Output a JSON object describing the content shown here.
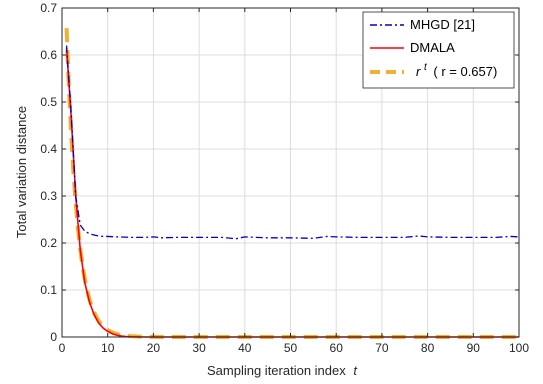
{
  "chart_data": {
    "type": "line",
    "xlabel": "Sampling iteration index",
    "xlabel_var": "t",
    "ylabel": "Total variation distance",
    "xlim": [
      0,
      100
    ],
    "ylim": [
      0,
      0.7
    ],
    "xticks": [
      0,
      10,
      20,
      30,
      40,
      50,
      60,
      70,
      80,
      90,
      100
    ],
    "yticks": [
      0,
      0.1,
      0.2,
      0.3,
      0.4,
      0.5,
      0.6,
      0.7
    ],
    "grid": true,
    "legend_position": "top-right",
    "series": [
      {
        "name": "MHGD [21]",
        "color": "#0000cc",
        "style": "dash-dot",
        "x": [
          1,
          2,
          3,
          4,
          5,
          6,
          7,
          8,
          9,
          10,
          12,
          15,
          18,
          20,
          22,
          25,
          28,
          30,
          35,
          38,
          40,
          45,
          50,
          55,
          58,
          60,
          65,
          70,
          75,
          78,
          80,
          85,
          90,
          95,
          98,
          100
        ],
        "y": [
          0.62,
          0.48,
          0.3,
          0.238,
          0.225,
          0.22,
          0.217,
          0.215,
          0.214,
          0.214,
          0.213,
          0.212,
          0.212,
          0.213,
          0.211,
          0.212,
          0.212,
          0.212,
          0.212,
          0.209,
          0.213,
          0.211,
          0.211,
          0.21,
          0.214,
          0.213,
          0.212,
          0.212,
          0.212,
          0.215,
          0.213,
          0.212,
          0.212,
          0.212,
          0.214,
          0.213
        ]
      },
      {
        "name": "DMALA",
        "color": "#ff0000",
        "style": "solid",
        "x": [
          1,
          2,
          3,
          4,
          5,
          6,
          7,
          8,
          9,
          10,
          11,
          12,
          13,
          14,
          15,
          18,
          20,
          30,
          40,
          50,
          60,
          70,
          80,
          90,
          100
        ],
        "y": [
          0.615,
          0.47,
          0.3,
          0.185,
          0.115,
          0.075,
          0.048,
          0.03,
          0.019,
          0.012,
          0.007,
          0.004,
          0.002,
          0.001,
          0.0005,
          0.0,
          0.0,
          0.0,
          0.0,
          0.0,
          0.0,
          0.0,
          0.0,
          0.0,
          0.0
        ]
      },
      {
        "name": "r^t (r = 0.657)",
        "legend_base": "r",
        "legend_sup": "t",
        "legend_paren": "( r = 0.657)",
        "color": "#f0b030",
        "style": "dashed-thick",
        "r": 0.657,
        "x_start": 1,
        "x_end": 100
      }
    ]
  }
}
